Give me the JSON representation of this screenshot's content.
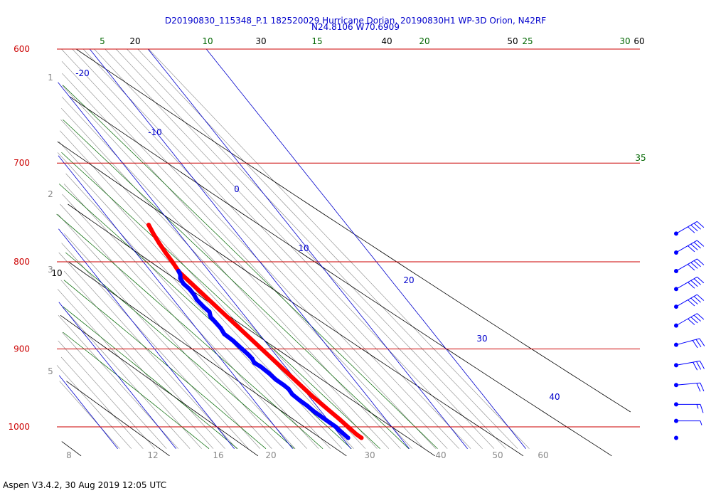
{
  "title": {
    "line1": "D20190830_115348_P.1 182520029 Hurricane Dorian, 20190830H1 WP-3D Orion, N42RF",
    "line2": "N24.8106 W70.6909"
  },
  "footer": "Aspen V3.4.2, 30 Aug 2019  12:05 UTC",
  "colors": {
    "isobar": "#cc0000",
    "isotherm": "#0000cc",
    "dry_adiabat": "#000000",
    "moist_adiabat": "#006600",
    "mixing_ratio": "#888888",
    "temperature": "#ff0000",
    "dewpoint": "#0000ff",
    "wind": "#0000ff"
  },
  "chart_data": {
    "type": "line",
    "diagram": "skew-T log-P",
    "y_axis": {
      "quantity": "pressure",
      "scale": "log",
      "range": [
        600,
        1030
      ],
      "inverted": true
    },
    "isobars": [
      "600",
      "700",
      "800",
      "900",
      "1000"
    ],
    "isotherm_labels": [
      "-20",
      "-10",
      "0",
      "10",
      "20",
      "30",
      "40"
    ],
    "dry_adiabat_top_labels": [
      "20",
      "30",
      "40",
      "50",
      "60"
    ],
    "dry_adiabat_side_label": "10",
    "moist_adiabat_labels": [
      "5",
      "10",
      "15",
      "20",
      "25",
      "30",
      "35"
    ],
    "height_labels": [
      "1",
      "2",
      "3",
      "5"
    ],
    "mixing_ratio_labels": [
      "8",
      "12",
      "16",
      "20",
      "30",
      "40",
      "50",
      "60"
    ],
    "series": [
      {
        "key": "temperature",
        "points": [
          [
            761,
            16.0
          ],
          [
            770,
            15.6
          ],
          [
            780,
            15.3
          ],
          [
            790,
            15.1
          ],
          [
            800,
            15.0
          ],
          [
            810,
            14.8
          ],
          [
            812,
            14.8
          ],
          [
            960,
            20.6
          ],
          [
            970,
            21.1
          ],
          [
            980,
            21.6
          ],
          [
            990,
            22.1
          ],
          [
            1000,
            22.5
          ],
          [
            1005,
            22.7
          ],
          [
            1010,
            22.9
          ],
          [
            1015,
            23.3
          ]
        ]
      },
      {
        "key": "dewpoint",
        "points": [
          [
            810,
            14.8
          ],
          [
            814,
            14.6
          ],
          [
            818,
            14.1
          ],
          [
            824,
            13.9
          ],
          [
            830,
            14.2
          ],
          [
            836,
            14.2
          ],
          [
            842,
            14.0
          ],
          [
            850,
            14.2
          ],
          [
            856,
            14.5
          ],
          [
            862,
            14.0
          ],
          [
            868,
            14.1
          ],
          [
            875,
            14.2
          ],
          [
            882,
            14.0
          ],
          [
            890,
            14.6
          ],
          [
            900,
            15.0
          ],
          [
            907,
            15.3
          ],
          [
            912,
            15.4
          ],
          [
            917,
            15.2
          ],
          [
            922,
            15.8
          ],
          [
            930,
            16.3
          ],
          [
            938,
            16.6
          ],
          [
            945,
            17.2
          ],
          [
            950,
            17.5
          ],
          [
            957,
            17.4
          ],
          [
            964,
            17.8
          ],
          [
            972,
            18.4
          ],
          [
            980,
            18.8
          ],
          [
            990,
            19.6
          ],
          [
            1000,
            20.4
          ],
          [
            1008,
            20.7
          ],
          [
            1015,
            21.0
          ]
        ]
      }
    ],
    "winds": [
      {
        "pressure": 770,
        "speed_kt": 40,
        "dir_deg": 60
      },
      {
        "pressure": 790,
        "speed_kt": 40,
        "dir_deg": 60
      },
      {
        "pressure": 810,
        "speed_kt": 40,
        "dir_deg": 60
      },
      {
        "pressure": 830,
        "speed_kt": 40,
        "dir_deg": 60
      },
      {
        "pressure": 850,
        "speed_kt": 40,
        "dir_deg": 60
      },
      {
        "pressure": 872,
        "speed_kt": 40,
        "dir_deg": 60
      },
      {
        "pressure": 895,
        "speed_kt": 30,
        "dir_deg": 75
      },
      {
        "pressure": 920,
        "speed_kt": 30,
        "dir_deg": 80
      },
      {
        "pressure": 945,
        "speed_kt": 20,
        "dir_deg": 85
      },
      {
        "pressure": 970,
        "speed_kt": 15,
        "dir_deg": 90
      },
      {
        "pressure": 992,
        "speed_kt": 5,
        "dir_deg": 90
      },
      {
        "pressure": 1015,
        "speed_kt": 0,
        "dir_deg": 0
      }
    ]
  }
}
